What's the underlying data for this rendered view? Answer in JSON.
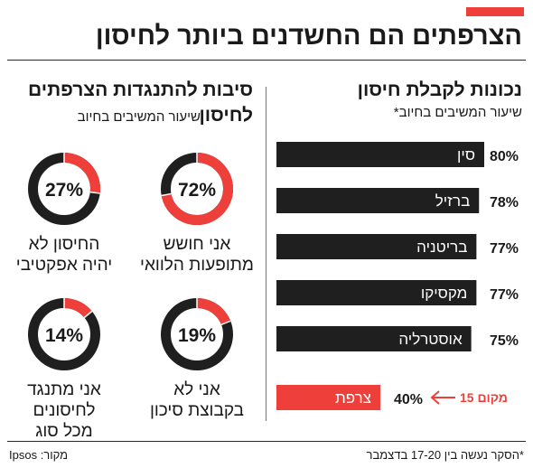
{
  "headline": "הצרפתים הם החשדנים ביותר לחיסון",
  "right_panel": {
    "title": "נכונות לקבלת חיסון",
    "subtitle": "שיעור המשיבים בחיוב*"
  },
  "left_panel": {
    "title_line1": "סיבות להתנגדות הצרפתים",
    "title_line2": "לחיסון",
    "subtitle": "שיעור המשיבים בחיוב"
  },
  "chart_data": {
    "type": "bar",
    "orientation": "horizontal",
    "categories": [
      "סין",
      "ברזיל",
      "בריטניה",
      "מקסיקו",
      "אוסטרליה",
      "צרפת"
    ],
    "values": [
      80,
      78,
      77,
      77,
      75,
      40
    ],
    "value_labels": [
      "80%",
      "78%",
      "77%",
      "77%",
      "75%",
      "40%"
    ],
    "highlight_index": 5,
    "annotation": "מקום 15",
    "colors": {
      "bar": "#1f1f1f",
      "highlight": "#ee3f3a"
    }
  },
  "reasons": [
    {
      "value": 72,
      "label": "72%",
      "text_line1": "אני חושש",
      "text_line2": "מתופעות הלוואי",
      "text_line3": ""
    },
    {
      "value": 27,
      "label": "27%",
      "text_line1": "החיסון לא",
      "text_line2": "יהיה אפקטיבי",
      "text_line3": ""
    },
    {
      "value": 19,
      "label": "19%",
      "text_line1": "אני לא",
      "text_line2": "בקבוצת סיכון",
      "text_line3": ""
    },
    {
      "value": 14,
      "label": "14%",
      "text_line1": "אני מתנגד",
      "text_line2": "לחיסונים",
      "text_line3": "מכל סוג"
    }
  ],
  "donut_colors": {
    "fill": "#ee3f3a",
    "track": "#1f1f1f"
  },
  "footnote": "*הסקר נעשה בין 17-20 בדצמבר",
  "source": "מקור: Ipsos"
}
